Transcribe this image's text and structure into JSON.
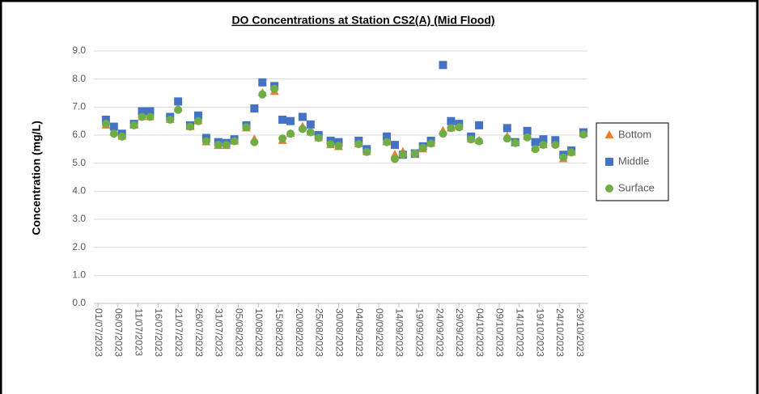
{
  "chart_data": {
    "type": "scatter",
    "title": "DO Concentrations at Station CS2(A) (Mid Flood)",
    "y_label": "Concentration (mg/L)",
    "x": [
      "03/07/2023",
      "05/07/2023",
      "07/07/2023",
      "10/07/2023",
      "12/07/2023",
      "14/07/2023",
      "19/07/2023",
      "21/07/2023",
      "24/07/2023",
      "26/07/2023",
      "28/07/2023",
      "31/07/2023",
      "02/08/2023",
      "04/08/2023",
      "07/08/2023",
      "09/08/2023",
      "11/08/2023",
      "14/08/2023",
      "16/08/2023",
      "18/08/2023",
      "21/08/2023",
      "23/08/2023",
      "25/08/2023",
      "28/08/2023",
      "30/08/2023",
      "04/09/2023",
      "06/09/2023",
      "11/09/2023",
      "13/09/2023",
      "15/09/2023",
      "18/09/2023",
      "20/09/2023",
      "22/09/2023",
      "25/09/2023",
      "27/09/2023",
      "29/09/2023",
      "02/10/2023",
      "04/10/2023",
      "11/10/2023",
      "13/10/2023",
      "16/10/2023",
      "18/10/2023",
      "20/10/2023",
      "23/10/2023",
      "25/10/2023",
      "27/10/2023",
      "30/10/2023"
    ],
    "series": [
      {
        "name": "Bottom",
        "color": "#ED7D31",
        "marker": "triangle",
        "values": [
          6.35,
          6.1,
          5.95,
          6.35,
          6.65,
          6.65,
          6.55,
          6.95,
          6.3,
          6.5,
          5.75,
          5.62,
          5.62,
          5.78,
          6.25,
          5.85,
          7.5,
          7.55,
          5.8,
          6.05,
          6.3,
          6.1,
          5.9,
          5.65,
          5.58,
          5.68,
          5.4,
          5.75,
          5.3,
          5.4,
          5.3,
          5.5,
          5.7,
          6.15,
          6.25,
          6.3,
          5.85,
          5.8,
          5.95,
          5.72,
          5.95,
          5.55,
          5.65,
          5.7,
          5.15,
          5.38,
          6.05
        ]
      },
      {
        "name": "Middle",
        "color": "#4472C4",
        "marker": "square",
        "values": [
          6.55,
          6.3,
          6.05,
          6.4,
          6.85,
          6.85,
          6.65,
          7.2,
          6.35,
          6.7,
          5.9,
          5.75,
          5.72,
          5.85,
          6.35,
          6.95,
          7.88,
          7.75,
          6.55,
          6.5,
          6.65,
          6.38,
          6.0,
          5.8,
          5.75,
          5.8,
          5.5,
          5.95,
          5.65,
          5.3,
          5.35,
          5.6,
          5.8,
          8.5,
          6.5,
          6.4,
          5.95,
          6.35,
          6.25,
          5.75,
          6.15,
          5.75,
          5.85,
          5.82,
          5.3,
          5.45,
          6.1
        ]
      },
      {
        "name": "Surface",
        "color": "#70AD47",
        "marker": "circle",
        "values": [
          6.4,
          6.05,
          5.95,
          6.35,
          6.65,
          6.65,
          6.55,
          6.9,
          6.3,
          6.5,
          5.78,
          5.65,
          5.65,
          5.78,
          6.28,
          5.75,
          7.45,
          7.65,
          5.88,
          6.05,
          6.22,
          6.1,
          5.9,
          5.68,
          5.62,
          5.68,
          5.4,
          5.75,
          5.15,
          5.3,
          5.35,
          5.55,
          5.7,
          6.05,
          6.25,
          6.28,
          5.85,
          5.78,
          5.88,
          5.72,
          5.92,
          5.5,
          5.65,
          5.65,
          5.2,
          5.38,
          6.02
        ]
      }
    ],
    "xlim": [
      "30/06/2023",
      "31/10/2023"
    ],
    "xticks": [
      "01/07/2023",
      "06/07/2023",
      "11/07/2023",
      "16/07/2023",
      "21/07/2023",
      "26/07/2023",
      "31/07/2023",
      "05/08/2023",
      "10/08/2023",
      "15/08/2023",
      "20/08/2023",
      "25/08/2023",
      "30/08/2023",
      "04/09/2023",
      "09/09/2023",
      "14/09/2023",
      "19/09/2023",
      "24/09/2023",
      "29/09/2023",
      "04/10/2023",
      "09/10/2023",
      "14/10/2023",
      "19/10/2023",
      "24/10/2023",
      "29/10/2023"
    ],
    "ylim": [
      0,
      9
    ],
    "yticks": [
      {
        "value": 0,
        "label": "0.0"
      },
      {
        "value": 1,
        "label": "1.0"
      },
      {
        "value": 2,
        "label": "2.0"
      },
      {
        "value": 3,
        "label": "3.0"
      },
      {
        "value": 4,
        "label": "4.0"
      },
      {
        "value": 5,
        "label": "5.0"
      },
      {
        "value": 6,
        "label": "6.0"
      },
      {
        "value": 7,
        "label": "7.0"
      },
      {
        "value": 8,
        "label": "8.0"
      },
      {
        "value": 9,
        "label": "9.0"
      }
    ],
    "grid": true,
    "legend": "right"
  }
}
